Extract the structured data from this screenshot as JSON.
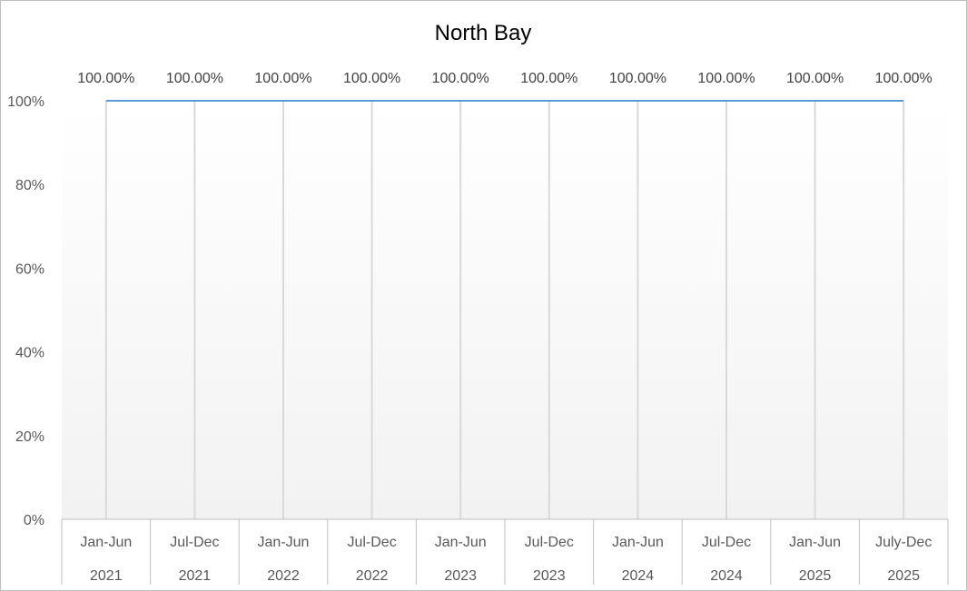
{
  "chart_data": {
    "type": "line",
    "title": "North Bay",
    "categories": [
      {
        "period": "Jan-Jun",
        "year": "2021"
      },
      {
        "period": "Jul-Dec",
        "year": "2021"
      },
      {
        "period": "Jan-Jun",
        "year": "2022"
      },
      {
        "period": "Jul-Dec",
        "year": "2022"
      },
      {
        "period": "Jan-Jun",
        "year": "2023"
      },
      {
        "period": "Jul-Dec",
        "year": "2023"
      },
      {
        "period": "Jan-Jun",
        "year": "2024"
      },
      {
        "period": "Jul-Dec",
        "year": "2024"
      },
      {
        "period": "Jan-Jun",
        "year": "2025"
      },
      {
        "period": "July-Dec",
        "year": "2025"
      }
    ],
    "series": [
      {
        "values": [
          100,
          100,
          100,
          100,
          100,
          100,
          100,
          100,
          100,
          100
        ],
        "data_labels": [
          "100.00%",
          "100.00%",
          "100.00%",
          "100.00%",
          "100.00%",
          "100.00%",
          "100.00%",
          "100.00%",
          "100.00%",
          "100.00%"
        ],
        "color": "#5b9bd5"
      }
    ],
    "y_ticks": [
      "0%",
      "20%",
      "40%",
      "60%",
      "80%",
      "100%"
    ],
    "ylim": [
      0,
      100
    ],
    "drop_lines": true,
    "legend": "none",
    "colors": {
      "plot_gradient_top": "#ffffff",
      "plot_gradient_bottom": "#f2f2f2",
      "drop_line": "#d9d9d9",
      "axis_line": "#bfbfbf"
    }
  }
}
